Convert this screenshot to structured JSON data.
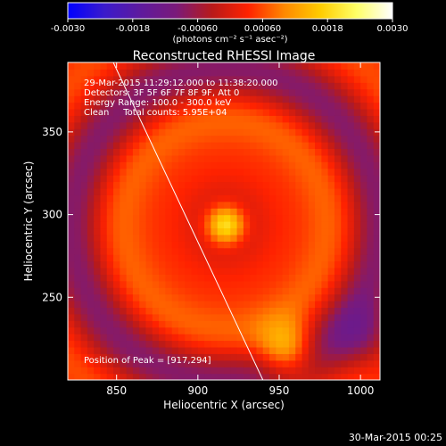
{
  "chart_data": {
    "type": "heatmap",
    "title": "Reconstructed RHESSI Image",
    "xlabel": "Heliocentric X (arcsec)",
    "ylabel": "Heliocentric Y (arcsec)",
    "xlim": [
      820,
      1012
    ],
    "ylim": [
      200,
      392
    ],
    "x_ticks": [
      {
        "v": 850,
        "label": "850"
      },
      {
        "v": 900,
        "label": "900"
      },
      {
        "v": 950,
        "label": "950"
      },
      {
        "v": 1000,
        "label": "1000"
      }
    ],
    "y_ticks": [
      {
        "v": 250,
        "label": "250"
      },
      {
        "v": 300,
        "label": "300"
      },
      {
        "v": 350,
        "label": "350"
      }
    ],
    "colorbar": {
      "range": [
        -0.003,
        0.003
      ],
      "ticks": [
        {
          "v": -0.003,
          "label": "-0.0030"
        },
        {
          "v": -0.0018,
          "label": "-0.0018"
        },
        {
          "v": -0.0006,
          "label": "-0.00060"
        },
        {
          "v": 0.0006,
          "label": "0.00060"
        },
        {
          "v": 0.0018,
          "label": "0.0018"
        },
        {
          "v": 0.003,
          "label": "0.0030"
        }
      ],
      "unit_label": "(photons cm⁻² s⁻¹ asec⁻²)",
      "colormap": [
        "#0000ff",
        "#3a1acc",
        "#5e1a9e",
        "#7a1a7a",
        "#b81a1a",
        "#ff2200",
        "#ff8800",
        "#ffcc00",
        "#ffff66",
        "#ffffff"
      ]
    },
    "annotations": [
      "29-Mar-2015 11:29:12.000 to 11:38:20.000",
      "Detectors: 3F 5F 6F 7F 8F 9F, Att 0",
      "Energy Range: 100.0 - 300.0 keV",
      "Clean     Total counts: 5.95E+04"
    ],
    "peak_label": "Position of Peak = [917,294]",
    "peak_position": [
      917,
      294
    ],
    "limb_line": [
      [
        848,
        392
      ],
      [
        940,
        200
      ]
    ]
  },
  "footer_date": "30-Mar-2015 00:25"
}
